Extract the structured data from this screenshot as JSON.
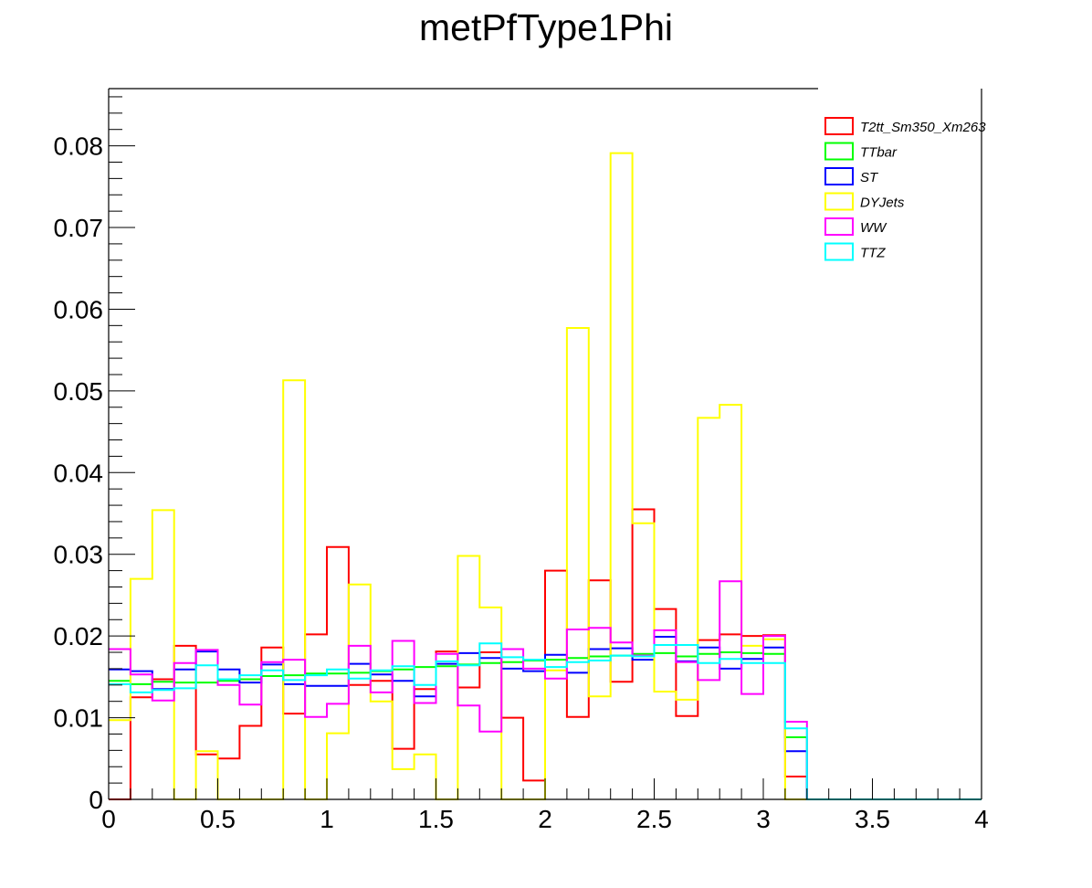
{
  "chart_data": {
    "type": "histogram",
    "title": "metPfType1Phi",
    "xlabel": "",
    "ylabel": "",
    "xlim": [
      0,
      4
    ],
    "ylim": [
      0,
      0.087
    ],
    "bin_width": 0.1,
    "x_tick_labels": [
      "0",
      "0.5",
      "1",
      "1.5",
      "2",
      "2.5",
      "3",
      "3.5",
      "4"
    ],
    "y_tick_labels": [
      "0",
      "0.01",
      "0.02",
      "0.03",
      "0.04",
      "0.05",
      "0.06",
      "0.07",
      "0.08"
    ],
    "x_tick_values": [
      0,
      0.5,
      1,
      1.5,
      2,
      2.5,
      3,
      3.5,
      4
    ],
    "y_tick_values": [
      0,
      0.01,
      0.02,
      0.03,
      0.04,
      0.05,
      0.06,
      0.07,
      0.08
    ],
    "grid": false,
    "legend_position": "top-right",
    "series": [
      {
        "name": "T2tt_Sm350_Xm263",
        "color": "#ff0000",
        "values": [
          0.0,
          0.0125,
          0.0147,
          0.0188,
          0.0055,
          0.005,
          0.009,
          0.0186,
          0.0105,
          0.0202,
          0.0309,
          0.014,
          0.0145,
          0.0062,
          0.0135,
          0.0181,
          0.0137,
          0.018,
          0.01,
          0.0023,
          0.028,
          0.0101,
          0.0268,
          0.0144,
          0.0355,
          0.0233,
          0.0102,
          0.0195,
          0.0202,
          0.02,
          0.0201,
          0.0028,
          0,
          0,
          0,
          0,
          0,
          0,
          0,
          0
        ]
      },
      {
        "name": "TTbar",
        "color": "#00ff00",
        "values": [
          0.0145,
          0.0141,
          0.0144,
          0.0143,
          0.0143,
          0.0145,
          0.0147,
          0.0151,
          0.0152,
          0.0154,
          0.0154,
          0.0155,
          0.0157,
          0.0159,
          0.0162,
          0.0163,
          0.0165,
          0.0167,
          0.0168,
          0.017,
          0.0171,
          0.0173,
          0.0175,
          0.0176,
          0.0178,
          0.0179,
          0.0175,
          0.0178,
          0.018,
          0.0179,
          0.0178,
          0.0076,
          0,
          0,
          0,
          0,
          0,
          0,
          0,
          0
        ]
      },
      {
        "name": "ST",
        "color": "#0000ff",
        "values": [
          0.0159,
          0.0157,
          0.0135,
          0.0159,
          0.0181,
          0.0159,
          0.0143,
          0.0165,
          0.0141,
          0.0139,
          0.0139,
          0.0166,
          0.0153,
          0.0145,
          0.0126,
          0.0166,
          0.0179,
          0.0173,
          0.016,
          0.0157,
          0.0177,
          0.0155,
          0.0184,
          0.0185,
          0.0171,
          0.0199,
          0.0169,
          0.0186,
          0.016,
          0.0172,
          0.0186,
          0.0059,
          0,
          0,
          0,
          0,
          0,
          0,
          0,
          0
        ]
      },
      {
        "name": "DYJets",
        "color": "#ffff00",
        "values": [
          0.0097,
          0.027,
          0.0354,
          0.0,
          0.0059,
          0.0,
          0.0,
          0.0,
          0.0513,
          0.0,
          0.0081,
          0.0263,
          0.012,
          0.0037,
          0.0055,
          0.0,
          0.0298,
          0.0235,
          0.0,
          0.0,
          0.0158,
          0.0577,
          0.0126,
          0.0791,
          0.0338,
          0.0132,
          0.0122,
          0.0467,
          0.0483,
          0.0188,
          0.0196,
          0.0,
          0,
          0,
          0,
          0,
          0,
          0,
          0,
          0
        ]
      },
      {
        "name": "WW",
        "color": "#ff00ff",
        "values": [
          0.0184,
          0.0153,
          0.0121,
          0.0167,
          0.0183,
          0.014,
          0.0116,
          0.0168,
          0.0171,
          0.0101,
          0.0117,
          0.0188,
          0.0131,
          0.0194,
          0.0118,
          0.0178,
          0.0115,
          0.0083,
          0.0184,
          0.016,
          0.0148,
          0.0208,
          0.021,
          0.0192,
          0.0176,
          0.0207,
          0.0168,
          0.0146,
          0.0267,
          0.0129,
          0.02,
          0.0095,
          0,
          0,
          0,
          0,
          0,
          0,
          0,
          0
        ]
      },
      {
        "name": "TTZ",
        "color": "#00ffff",
        "values": [
          0.0141,
          0.0131,
          0.0134,
          0.0136,
          0.0164,
          0.0147,
          0.0152,
          0.0158,
          0.0146,
          0.0152,
          0.0159,
          0.0148,
          0.0158,
          0.0163,
          0.014,
          0.0169,
          0.0164,
          0.0191,
          0.0174,
          0.0171,
          0.0162,
          0.0168,
          0.017,
          0.0176,
          0.0175,
          0.0189,
          0.0189,
          0.0167,
          0.0172,
          0.0167,
          0.0167,
          0.0087,
          0,
          0,
          0,
          0,
          0,
          0,
          0,
          0
        ]
      }
    ]
  }
}
